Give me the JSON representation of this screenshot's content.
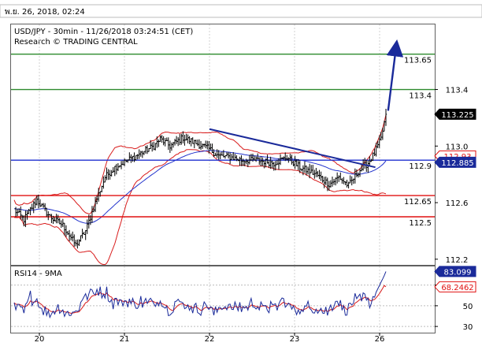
{
  "timestamp": "พ.ย. 26, 2018, 02:24",
  "chart_data": {
    "type": "candlestick",
    "title": "USD/JPY - 30min - 11/26/2018 03:24:51 (CET)",
    "subtitle": "Research © TRADING CENTRAL",
    "ylim": [
      112.16,
      113.86
    ],
    "y_ticks": [
      112.2,
      112.6,
      113.0,
      113.4
    ],
    "x_ticks": [
      "20",
      "21",
      "22",
      "23",
      "26"
    ],
    "levels": [
      {
        "value": 113.65,
        "label": "113.65",
        "color": "#2e8b2e"
      },
      {
        "value": 113.4,
        "label": "113.4",
        "color": "#2e8b2e"
      },
      {
        "value": 112.9,
        "label": "112.9",
        "color": "#1e2fd0"
      },
      {
        "value": 112.65,
        "label": "112.65",
        "color": "#e01010"
      },
      {
        "value": 112.5,
        "label": "112.5",
        "color": "#e01010"
      }
    ],
    "price_badges": [
      {
        "value": 113.225,
        "label": "113.225",
        "bg": "#000000",
        "fg": "#ffffff"
      },
      {
        "value": 112.93,
        "label": "112.93",
        "bg": "#ffffff",
        "fg": "#e01010",
        "border": "#e01010"
      },
      {
        "value": 112.885,
        "label": "112.885",
        "bg": "#1a2a9a",
        "fg": "#ffffff"
      }
    ],
    "trendline": {
      "from": [
        22.0,
        113.12
      ],
      "to": [
        23.95,
        112.85
      ]
    },
    "arrow": {
      "from": [
        26.1,
        113.25
      ],
      "to": [
        26.2,
        113.73
      ]
    },
    "rsi": {
      "label": "RSI14 - 9MA",
      "ylim": [
        24,
        88
      ],
      "y_ticks": [
        30,
        50,
        70
      ],
      "badges": [
        {
          "value": 83.099,
          "label": "83.099",
          "bg": "#1a2a9a",
          "fg": "#ffffff"
        },
        {
          "value": 68.2462,
          "label": "68.2462",
          "bg": "#ffffff",
          "fg": "#e01010",
          "border": "#e01010"
        }
      ]
    }
  }
}
